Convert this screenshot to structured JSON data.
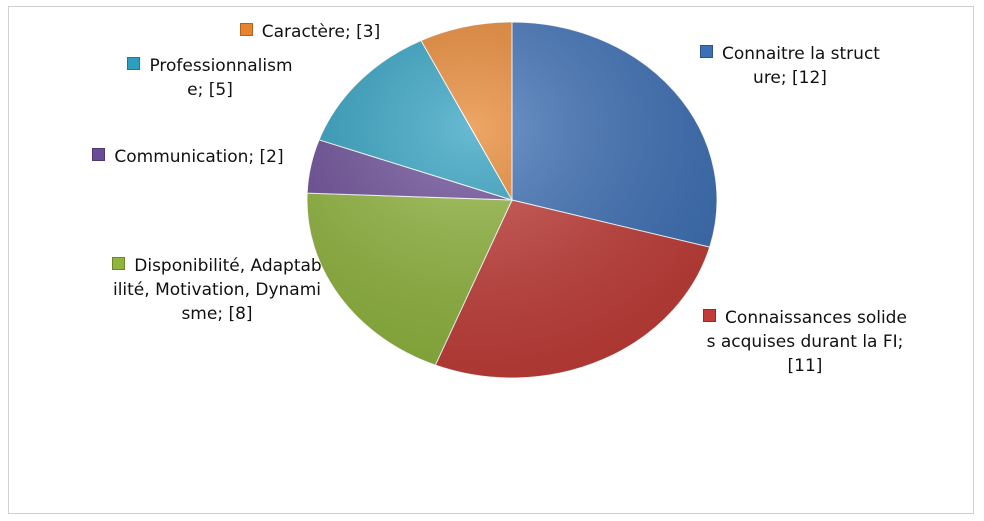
{
  "chart_data": {
    "type": "pie",
    "categories": [
      "Connaitre la structure;",
      "Connaissances solides acquises durant la FI;",
      "Disponibilité, Adaptabilité, Motivation, Dynamisme;",
      "Communication;",
      "Professionnalisme;",
      "Caractère;"
    ],
    "values": [
      12,
      11,
      8,
      2,
      5,
      3
    ],
    "value_labels": [
      "[12]",
      "[11]",
      "[8]",
      "[2]",
      "[5]",
      "[3]"
    ],
    "colors": [
      "#3b6fb6",
      "#c33b36",
      "#8fb53b",
      "#6a4b97",
      "#2c9fc0",
      "#e7842c"
    ]
  }
}
